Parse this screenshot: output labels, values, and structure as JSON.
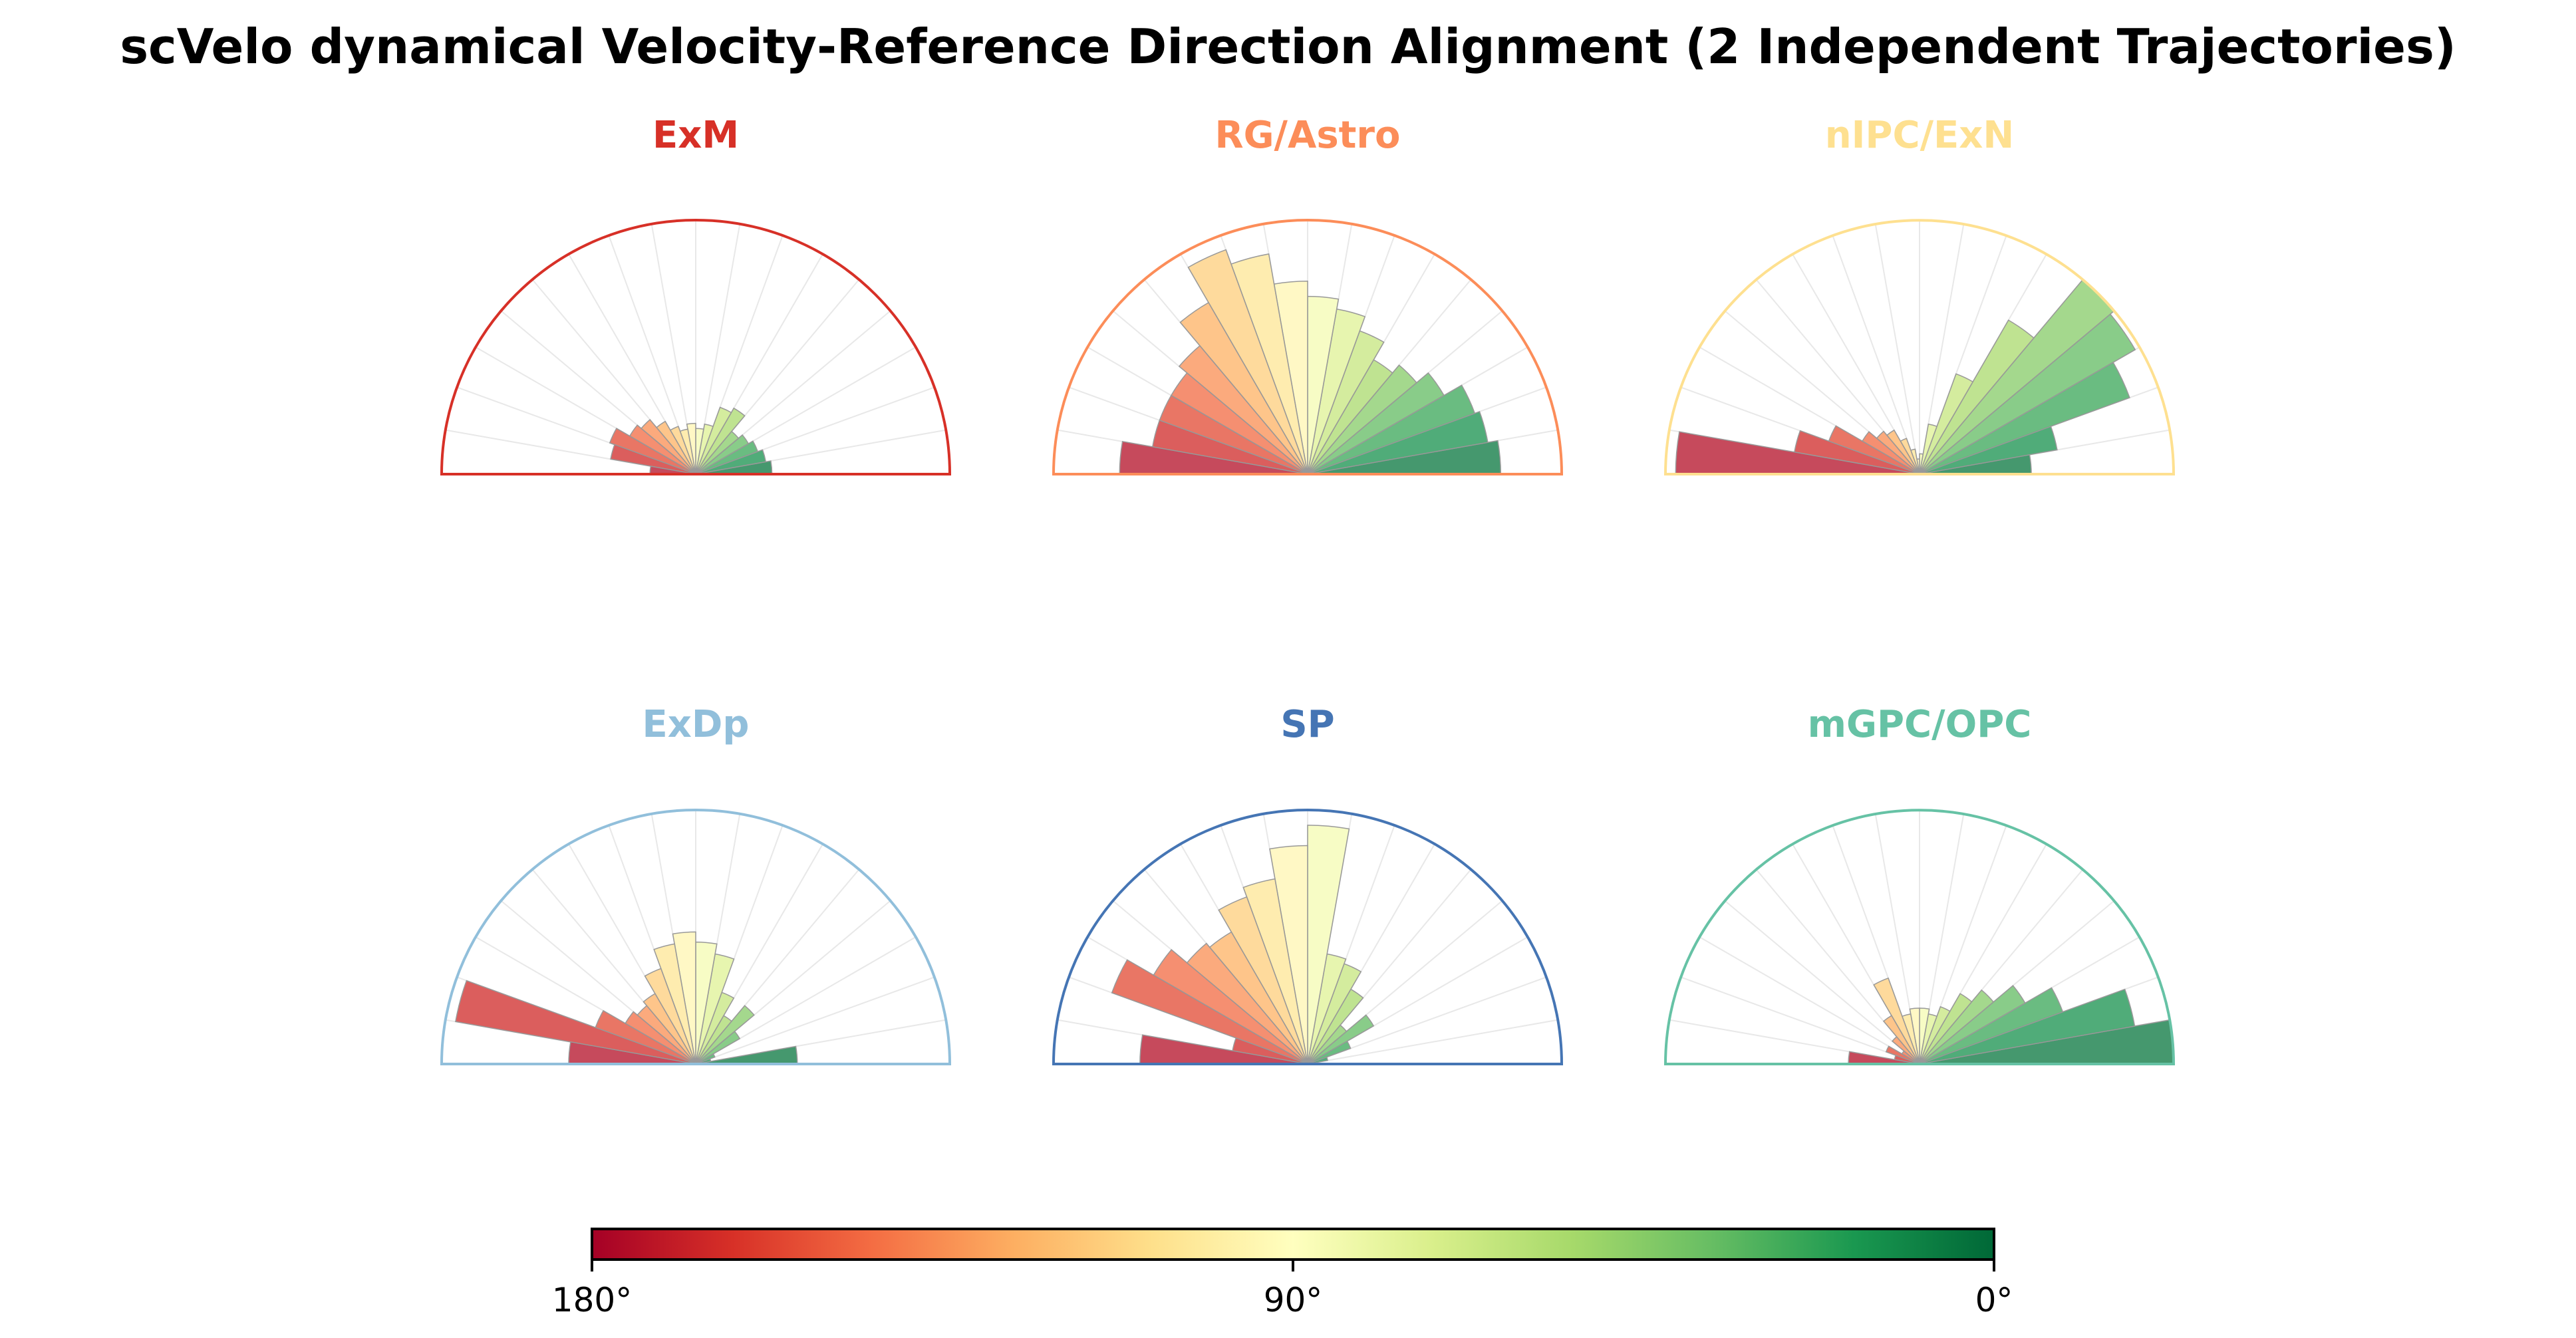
{
  "title": "scVelo dynamical Velocity-Reference Direction Alignment (2 Independent Trajectories)",
  "chart_data": {
    "type": "polar-bar",
    "angle_range_deg": [
      0,
      180
    ],
    "bins": 18,
    "bin_width_deg": 10,
    "bin_centers_deg": [
      5,
      15,
      25,
      35,
      45,
      55,
      65,
      75,
      85,
      95,
      105,
      115,
      125,
      135,
      145,
      155,
      165,
      175
    ],
    "radius_max": 1.0,
    "grid": true,
    "panels": [
      {
        "title": "ExM",
        "color": "#d73027",
        "values": [
          0.3,
          0.28,
          0.26,
          0.24,
          0.22,
          0.3,
          0.28,
          0.2,
          0.18,
          0.2,
          0.18,
          0.2,
          0.24,
          0.28,
          0.3,
          0.36,
          0.34,
          0.18
        ]
      },
      {
        "title": "RG/Astro",
        "color": "#fc8d59",
        "values": [
          0.76,
          0.72,
          0.7,
          0.62,
          0.56,
          0.52,
          0.6,
          0.66,
          0.7,
          0.76,
          0.88,
          0.94,
          0.78,
          0.66,
          0.62,
          0.62,
          0.62,
          0.74
        ]
      },
      {
        "title": "nIPC/ExN",
        "color": "#fee090",
        "values": [
          0.44,
          0.55,
          0.88,
          0.98,
          1.0,
          0.7,
          0.42,
          0.2,
          0.08,
          0.06,
          0.1,
          0.15,
          0.2,
          0.22,
          0.26,
          0.38,
          0.5,
          0.96
        ]
      },
      {
        "title": "ExDp",
        "color": "#91bfdb",
        "values": [
          0.4,
          0.06,
          0.08,
          0.2,
          0.3,
          0.22,
          0.3,
          0.44,
          0.48,
          0.52,
          0.48,
          0.4,
          0.32,
          0.3,
          0.32,
          0.42,
          0.96,
          0.5
        ]
      },
      {
        "title": "SP",
        "color": "#4575b4",
        "values": [
          0.04,
          0.08,
          0.18,
          0.3,
          0.2,
          0.34,
          0.42,
          0.44,
          0.94,
          0.86,
          0.74,
          0.7,
          0.6,
          0.62,
          0.7,
          0.82,
          0.3,
          0.66
        ]
      },
      {
        "title": "mGPC/OPC",
        "color": "#66c2a5",
        "values": [
          1.0,
          0.86,
          0.6,
          0.48,
          0.38,
          0.32,
          0.24,
          0.2,
          0.22,
          0.22,
          0.2,
          0.36,
          0.22,
          0.14,
          0.08,
          0.14,
          0.1,
          0.28
        ]
      }
    ],
    "colorbar": {
      "colormap": "RdYlGn (reversed: 180° red → 0° green)",
      "stops": [
        "#a50026",
        "#d73027",
        "#f46d43",
        "#fdae61",
        "#fee08b",
        "#ffffbf",
        "#d9ef8b",
        "#a6d96a",
        "#66bd63",
        "#1a9850",
        "#006837"
      ],
      "ticks": [
        "180°",
        "90°",
        "0°"
      ]
    }
  }
}
